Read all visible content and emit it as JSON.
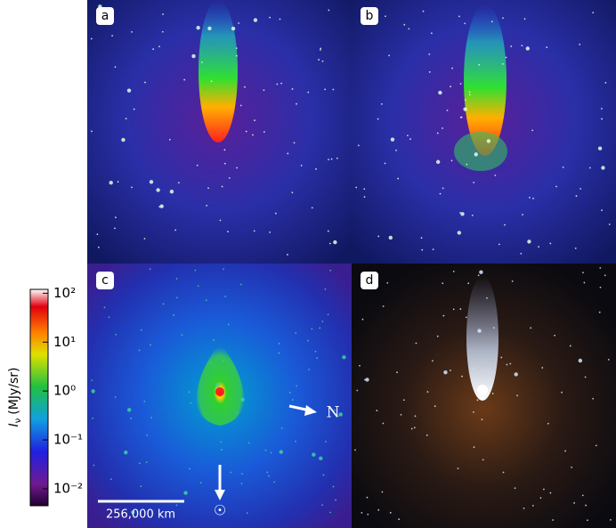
{
  "colorbar": {
    "symbol": "I",
    "subscript": "ν",
    "unit": "(MJy/sr)",
    "scale": "log",
    "lim": [
      0.0045,
      120
    ],
    "ticks": [
      {
        "value": 100,
        "label": "10²"
      },
      {
        "value": 10,
        "label": "10¹"
      },
      {
        "value": 1,
        "label": "10⁰"
      },
      {
        "value": 0.1,
        "label": "10⁻¹"
      },
      {
        "value": 0.01,
        "label": "10⁻²"
      }
    ]
  },
  "panels": [
    {
      "label": "a"
    },
    {
      "label": "b"
    },
    {
      "label": "c"
    },
    {
      "label": "d"
    }
  ],
  "annotations": {
    "north": "N",
    "sun": "☉",
    "scale_bar": "256,000 km"
  }
}
